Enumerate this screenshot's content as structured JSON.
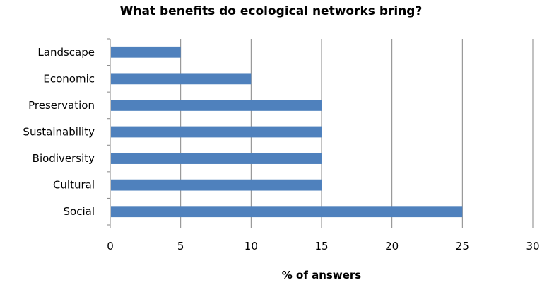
{
  "chart_data": {
    "type": "bar",
    "orientation": "horizontal",
    "title": "What benefits do ecological networks bring?",
    "xlabel": "% of answers",
    "ylabel": "",
    "categories": [
      "Landscape",
      "Economic",
      "Preservation",
      "Sustainability",
      "Biodiversity",
      "Cultural",
      "Social"
    ],
    "values": [
      5,
      10,
      15,
      15,
      15,
      15,
      25
    ],
    "xlim": [
      0,
      30
    ],
    "xticks": [
      0,
      5,
      10,
      15,
      20,
      25,
      30
    ],
    "grid": "vertical",
    "legend": "none",
    "colors": {
      "bar": "#4f81bd",
      "grid": "#868686",
      "axis": "#868686"
    }
  }
}
